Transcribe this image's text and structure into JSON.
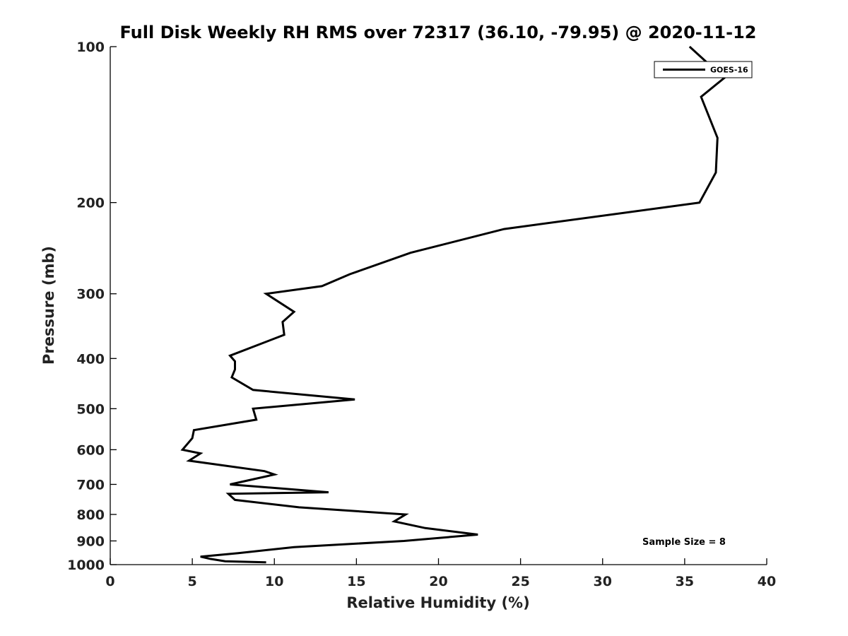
{
  "chart_data": {
    "type": "line",
    "title": "Full Disk Weekly RH RMS over 72317 (36.10, -79.95) @ 2020-11-12",
    "xlabel": "Relative Humidity (%)",
    "ylabel": "Pressure (mb)",
    "xlim": [
      0,
      40
    ],
    "ylim": [
      1000,
      100
    ],
    "yscale": "log",
    "y_reversed": true,
    "x_ticks": [
      0,
      5,
      10,
      15,
      20,
      25,
      30,
      35,
      40
    ],
    "y_ticks": [
      100,
      200,
      300,
      400,
      500,
      600,
      700,
      800,
      900,
      1000
    ],
    "grid": false,
    "legend_position": "top-right",
    "annotation": "Sample Size = 8",
    "series": [
      {
        "name": "GOES-16",
        "color": "#000000",
        "points": [
          [
            35.3,
            100
          ],
          [
            37.4,
            115
          ],
          [
            36.0,
            125
          ],
          [
            37.0,
            150
          ],
          [
            36.9,
            175
          ],
          [
            35.9,
            200
          ],
          [
            24.0,
            225
          ],
          [
            18.3,
            250
          ],
          [
            14.6,
            275
          ],
          [
            12.9,
            290
          ],
          [
            9.5,
            300
          ],
          [
            11.2,
            325
          ],
          [
            10.5,
            340
          ],
          [
            10.6,
            360
          ],
          [
            7.3,
            395
          ],
          [
            7.6,
            405
          ],
          [
            7.6,
            420
          ],
          [
            7.4,
            435
          ],
          [
            8.7,
            460
          ],
          [
            14.9,
            480
          ],
          [
            8.7,
            500
          ],
          [
            8.9,
            525
          ],
          [
            5.1,
            550
          ],
          [
            5.0,
            570
          ],
          [
            4.4,
            600
          ],
          [
            5.5,
            610
          ],
          [
            4.8,
            630
          ],
          [
            9.4,
            660
          ],
          [
            10.0,
            670
          ],
          [
            7.3,
            700
          ],
          [
            13.3,
            725
          ],
          [
            7.2,
            730
          ],
          [
            7.6,
            750
          ],
          [
            11.5,
            775
          ],
          [
            18.0,
            800
          ],
          [
            17.3,
            825
          ],
          [
            19.2,
            850
          ],
          [
            22.4,
            875
          ],
          [
            17.9,
            900
          ],
          [
            11.2,
            925
          ],
          [
            7.8,
            950
          ],
          [
            5.5,
            965
          ],
          [
            6.1,
            975
          ],
          [
            7.0,
            985
          ],
          [
            9.5,
            990
          ]
        ]
      }
    ]
  }
}
